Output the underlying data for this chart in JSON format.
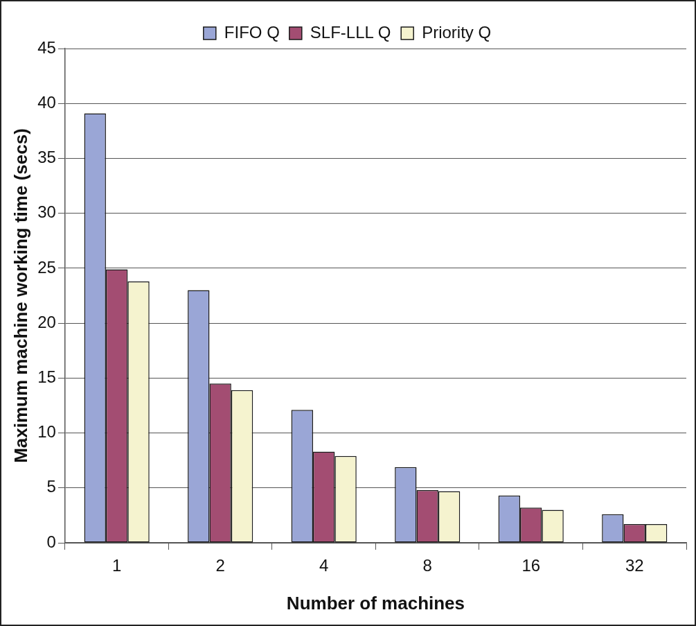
{
  "chart_data": {
    "type": "bar",
    "xlabel": "Number of machines",
    "ylabel": "Maximum machine working time (secs)",
    "categories": [
      "1",
      "2",
      "4",
      "8",
      "16",
      "32"
    ],
    "series": [
      {
        "name": "FIFO Q",
        "color": "#9aa6d6",
        "values": [
          39.1,
          23.0,
          12.1,
          6.9,
          4.3,
          2.6
        ]
      },
      {
        "name": "SLF-LLL Q",
        "color": "#a34d72",
        "values": [
          24.9,
          14.5,
          8.3,
          4.8,
          3.2,
          1.7
        ]
      },
      {
        "name": "Priority Q",
        "color": "#f5f3cf",
        "values": [
          23.8,
          13.9,
          7.9,
          4.7,
          3.0,
          1.7
        ]
      }
    ],
    "ylim": [
      0,
      45
    ],
    "yticks": [
      0,
      5,
      10,
      15,
      20,
      25,
      30,
      35,
      40,
      45
    ],
    "grid": "y",
    "legend": "top"
  }
}
